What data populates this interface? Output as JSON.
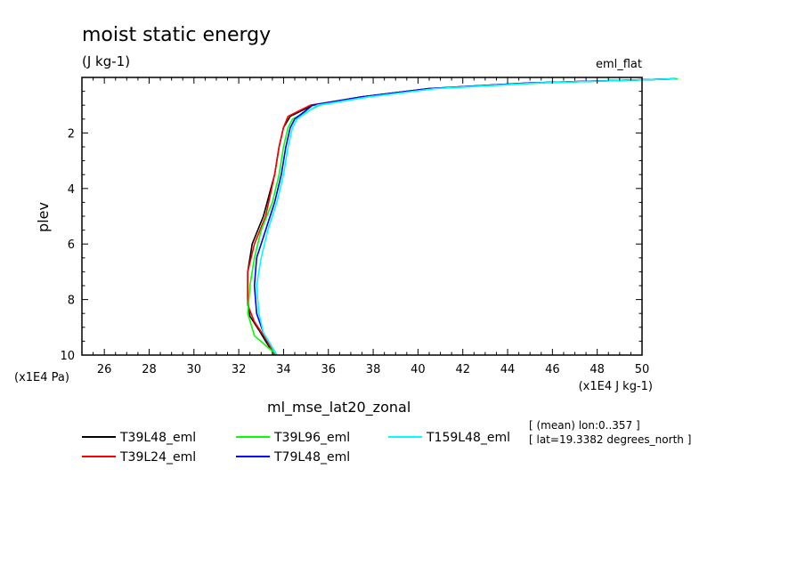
{
  "chart_data": {
    "type": "line",
    "title": "moist static energy",
    "units": "(J kg-1)",
    "experiment": "eml_flat",
    "xlabel": "ml_mse_lat20_zonal",
    "ylabel": "plev",
    "x_units": "(x1E4 J kg-1)",
    "y_units": "(x1E4 Pa)",
    "xlim": [
      25,
      50
    ],
    "ylim": [
      10,
      0
    ],
    "x_ticks": [
      26,
      28,
      30,
      32,
      34,
      36,
      38,
      40,
      42,
      44,
      46,
      48,
      50
    ],
    "y_ticks": [
      2,
      4,
      6,
      8,
      10
    ],
    "x_tick_labels": [
      "26",
      "28",
      "30",
      "32",
      "34",
      "36",
      "38",
      "40",
      "42",
      "44",
      "46",
      "48",
      "50"
    ],
    "y_tick_labels": [
      "2",
      "4",
      "6",
      "8",
      "10"
    ],
    "legend_placement": "bottom",
    "info_lines": [
      "[ (mean) lon:0..357 ]",
      "[ lat=19.3382 degrees_north ]"
    ],
    "series": [
      {
        "name": "T39L48_eml",
        "color": "#000000",
        "points": [
          [
            33.6,
            10
          ],
          [
            33.2,
            9.5
          ],
          [
            32.9,
            9.1
          ],
          [
            32.5,
            8.6
          ],
          [
            32.4,
            8.0
          ],
          [
            32.4,
            7.0
          ],
          [
            32.6,
            6.0
          ],
          [
            33.1,
            5.0
          ],
          [
            33.6,
            3.5
          ],
          [
            33.8,
            2.5
          ],
          [
            34.0,
            1.8
          ],
          [
            34.3,
            1.4
          ],
          [
            35.3,
            1.0
          ],
          [
            37.5,
            0.7
          ],
          [
            40.5,
            0.4
          ],
          [
            45.0,
            0.2
          ],
          [
            51.5,
            0.05
          ]
        ]
      },
      {
        "name": "T39L24_eml",
        "color": "#ff0000",
        "points": [
          [
            33.6,
            10
          ],
          [
            33.2,
            9.4
          ],
          [
            32.7,
            8.8
          ],
          [
            32.4,
            8.2
          ],
          [
            32.4,
            7.0
          ],
          [
            32.7,
            6.0
          ],
          [
            33.2,
            5.0
          ],
          [
            33.6,
            3.5
          ],
          [
            33.8,
            2.5
          ],
          [
            34.0,
            1.8
          ],
          [
            34.2,
            1.4
          ],
          [
            35.2,
            1.0
          ],
          [
            37.5,
            0.7
          ],
          [
            40.5,
            0.4
          ],
          [
            45.0,
            0.2
          ],
          [
            51.5,
            0.05
          ]
        ]
      },
      {
        "name": "T39L96_eml",
        "color": "#00ff00",
        "points": [
          [
            33.7,
            10
          ],
          [
            32.7,
            9.3
          ],
          [
            32.4,
            8.5
          ],
          [
            32.5,
            7.5
          ],
          [
            32.7,
            6.5
          ],
          [
            33.0,
            5.5
          ],
          [
            33.5,
            4.5
          ],
          [
            33.8,
            3.5
          ],
          [
            34.0,
            2.5
          ],
          [
            34.2,
            1.8
          ],
          [
            34.4,
            1.5
          ],
          [
            35.6,
            1.0
          ],
          [
            37.8,
            0.7
          ],
          [
            40.8,
            0.4
          ],
          [
            45.5,
            0.2
          ],
          [
            51.6,
            0.05
          ]
        ]
      },
      {
        "name": "T79L48_eml",
        "color": "#0000ff",
        "points": [
          [
            33.7,
            10
          ],
          [
            33.1,
            9.2
          ],
          [
            32.8,
            8.5
          ],
          [
            32.7,
            7.5
          ],
          [
            32.8,
            6.5
          ],
          [
            33.2,
            5.5
          ],
          [
            33.6,
            4.5
          ],
          [
            33.9,
            3.5
          ],
          [
            34.1,
            2.5
          ],
          [
            34.3,
            1.8
          ],
          [
            34.5,
            1.5
          ],
          [
            35.3,
            1.0
          ],
          [
            37.5,
            0.7
          ],
          [
            40.5,
            0.4
          ],
          [
            45.0,
            0.2
          ],
          [
            51.5,
            0.05
          ]
        ]
      },
      {
        "name": "T159L48_eml",
        "color": "#00ffff",
        "points": [
          [
            33.7,
            10
          ],
          [
            33.1,
            9.2
          ],
          [
            32.9,
            8.5
          ],
          [
            32.8,
            7.5
          ],
          [
            33.0,
            6.5
          ],
          [
            33.3,
            5.5
          ],
          [
            33.7,
            4.5
          ],
          [
            34.0,
            3.5
          ],
          [
            34.2,
            2.5
          ],
          [
            34.4,
            1.8
          ],
          [
            34.6,
            1.5
          ],
          [
            35.5,
            1.0
          ],
          [
            37.8,
            0.7
          ],
          [
            40.8,
            0.4
          ],
          [
            45.3,
            0.2
          ],
          [
            51.5,
            0.05
          ]
        ]
      }
    ]
  }
}
